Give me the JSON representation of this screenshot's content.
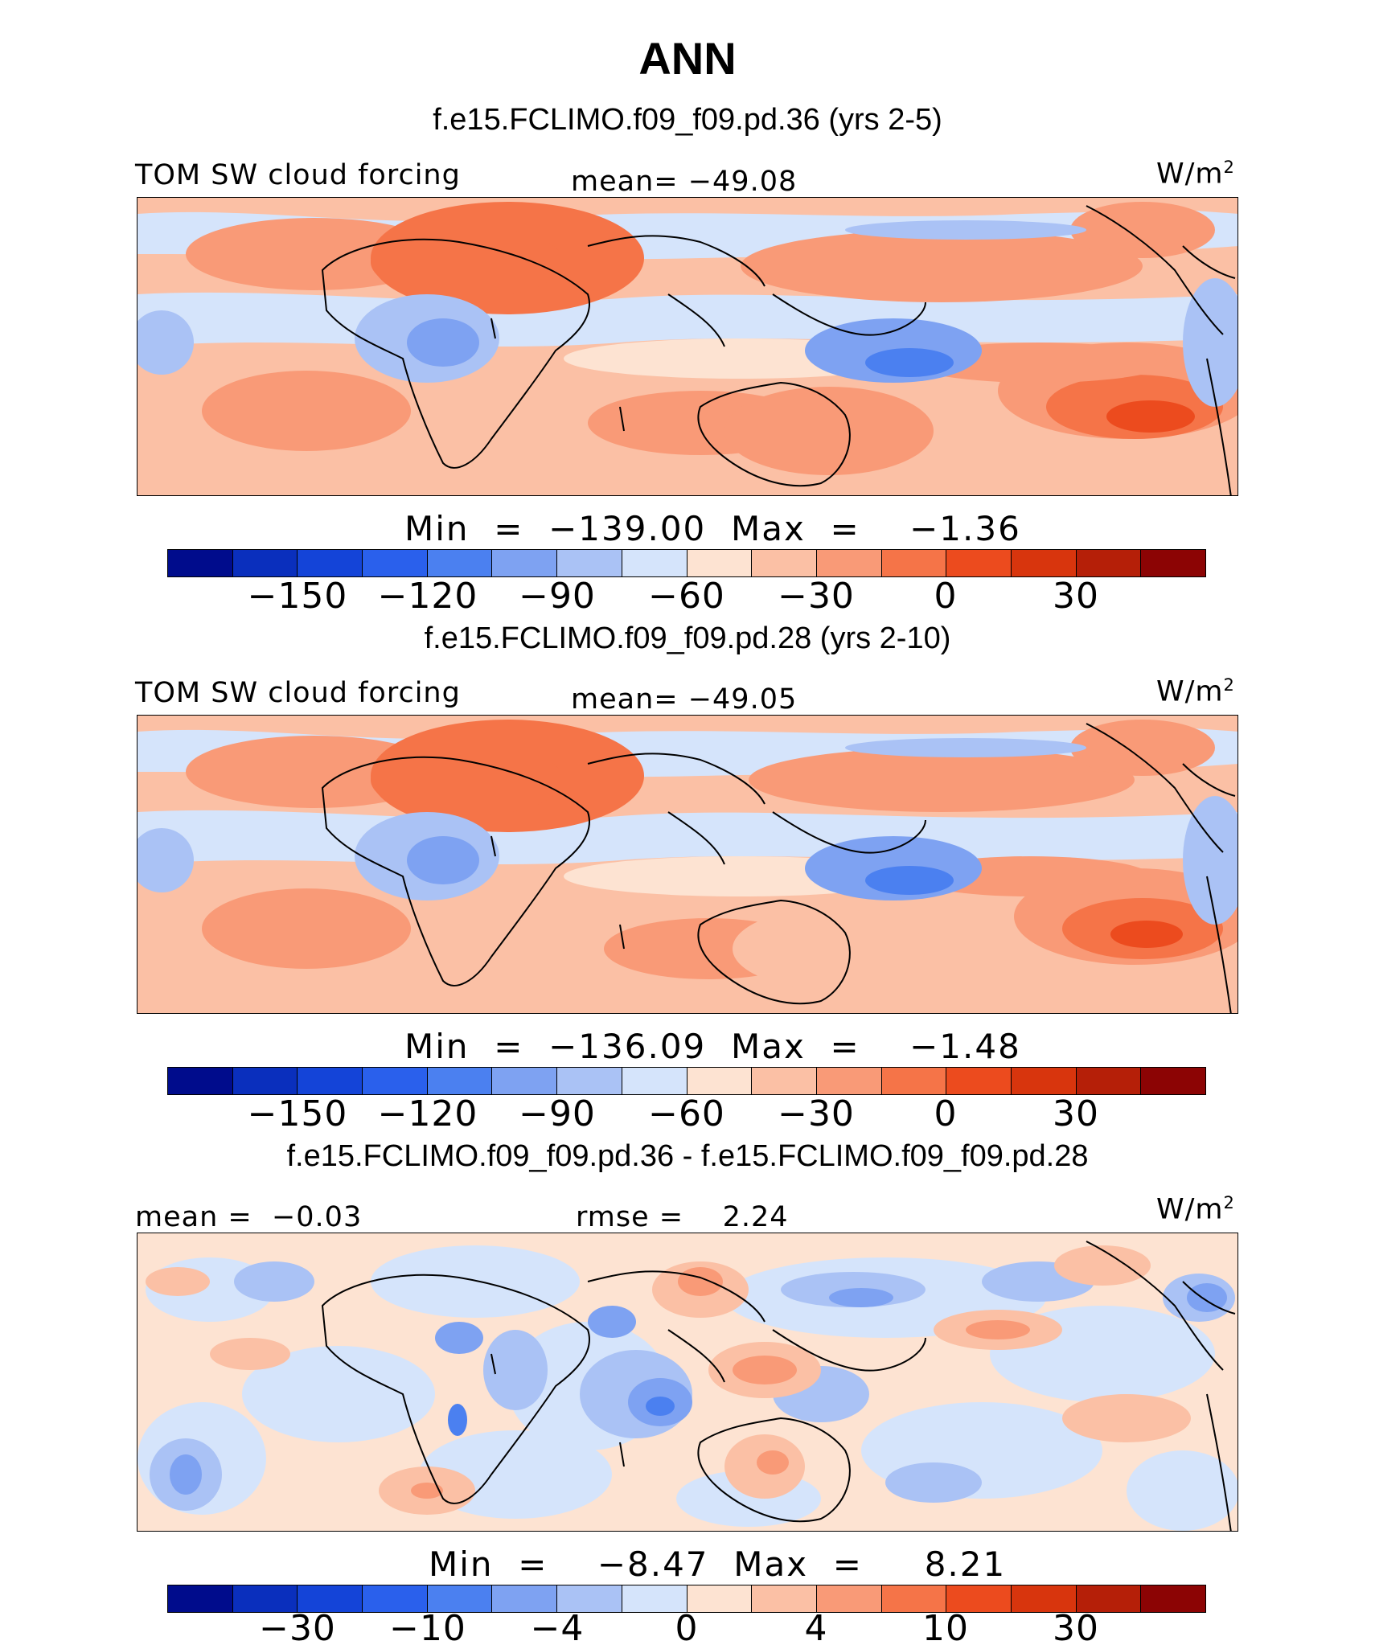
{
  "title": "ANN",
  "colors": {
    "palette": [
      "#000c8c",
      "#0a2fbd",
      "#1444d8",
      "#2a60ec",
      "#4b80f0",
      "#7ea2f2",
      "#aac2f5",
      "#d5e4fb",
      "#fde3d2",
      "#fbc0a5",
      "#f99a77",
      "#f57448",
      "#ec4b1e",
      "#d8350d",
      "#b51f08",
      "#8c0404"
    ]
  },
  "panels": [
    {
      "case_title": "f.e15.FCLIMO.f09_f09.pd.36 (yrs 2-5)",
      "left_label": "TOM SW cloud forcing",
      "center_label": "mean= −49.08",
      "units": "W/m",
      "units_sup": "2",
      "minmax": "Min  =  −139.00  Max  =    −1.36",
      "ticks": [
        "−150",
        "−120",
        "−90",
        "−60",
        "−30",
        "0",
        "30"
      ],
      "variant": "a"
    },
    {
      "case_title": "f.e15.FCLIMO.f09_f09.pd.28 (yrs 2-10)",
      "left_label": "TOM SW cloud forcing",
      "center_label": "mean= −49.05",
      "units": "W/m",
      "units_sup": "2",
      "minmax": "Min  =  −136.09  Max  =    −1.48",
      "ticks": [
        "−150",
        "−120",
        "−90",
        "−60",
        "−30",
        "0",
        "30"
      ],
      "variant": "b"
    },
    {
      "case_title": "f.e15.FCLIMO.f09_f09.pd.36 - f.e15.FCLIMO.f09_f09.pd.28",
      "left_label": "mean =  −0.03",
      "center_label": "rmse =    2.24",
      "units": "W/m",
      "units_sup": "2",
      "minmax": "Min  =    −8.47  Max  =     8.21",
      "ticks": [
        "−30",
        "−10",
        "−4",
        "0",
        "4",
        "10",
        "30"
      ],
      "variant": "diff"
    }
  ]
}
